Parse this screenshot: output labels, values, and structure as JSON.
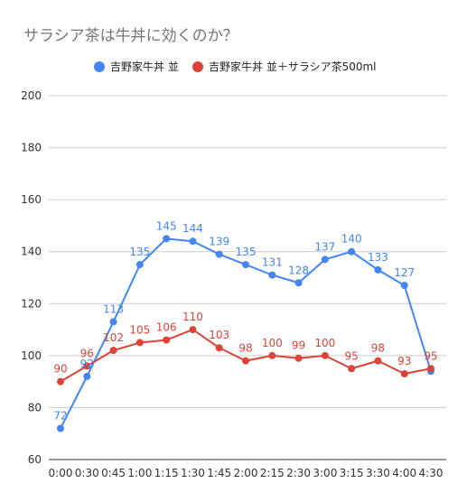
{
  "chart_data": {
    "type": "line",
    "title": "サラシア茶は牛丼に効くのか？",
    "xlabel": "",
    "ylabel": "",
    "categories": [
      "0:00",
      "0:30",
      "0:45",
      "1:00",
      "1:15",
      "1:30",
      "1:45",
      "2:00",
      "2:15",
      "2:30",
      "3:00",
      "3:15",
      "3:30",
      "4:00",
      "4:30"
    ],
    "ylim": [
      60,
      200
    ],
    "yticks": [
      60,
      80,
      100,
      120,
      140,
      160,
      180,
      200
    ],
    "grid": true,
    "legend_position": "top",
    "series": [
      {
        "name": "吉野家牛丼 並",
        "color": "#4285f4",
        "values": [
          72,
          92,
          113,
          135,
          145,
          144,
          139,
          135,
          131,
          128,
          137,
          140,
          133,
          127,
          94
        ],
        "labels": [
          "72",
          "92",
          "113",
          "135",
          "145",
          "144",
          "139",
          "135",
          "131",
          "128",
          "137",
          "140",
          "133",
          "127",
          ""
        ]
      },
      {
        "name": "吉野家牛丼 並＋サラシア茶500ml",
        "color": "#db4437",
        "values": [
          90,
          96,
          102,
          105,
          106,
          110,
          103,
          98,
          100,
          99,
          100,
          95,
          98,
          93,
          95
        ],
        "labels": [
          "90",
          "96",
          "102",
          "105",
          "106",
          "110",
          "103",
          "98",
          "100",
          "99",
          "100",
          "95",
          "98",
          "93",
          "95"
        ]
      }
    ]
  }
}
